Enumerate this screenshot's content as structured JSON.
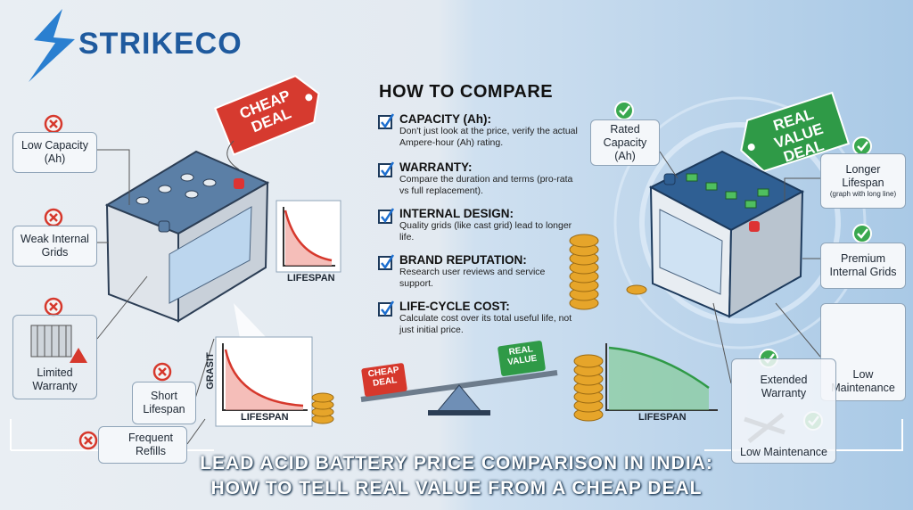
{
  "logo": "STRIKECO",
  "left": {
    "tag": "CHEAP DEAL",
    "callouts": [
      "Low Capacity (Ah)",
      "Weak Internal Grids",
      "Limited Warranty",
      "Short Lifespan",
      "Frequent Refills"
    ],
    "chart_top_label": "LIFESPAN",
    "chart_bottom_ylabel": "GRASIT",
    "chart_bottom_label": "LIFESPAN"
  },
  "compare": {
    "title": "HOW TO COMPARE",
    "items": [
      {
        "title": "CAPACITY (Ah):",
        "text": "Don't just look at the price, verify the actual Ampere-hour (Ah) rating."
      },
      {
        "title": "WARRANTY:",
        "text": "Compare the duration and terms (pro-rata vs full replacement)."
      },
      {
        "title": "INTERNAL DESIGN:",
        "text": "Quality grids (like cast grid) lead to longer life."
      },
      {
        "title": "BRAND REPUTATION:",
        "text": "Research user reviews and service support."
      },
      {
        "title": "LIFE-CYCLE COST:",
        "text": "Calculate cost over its total useful life, not just initial price."
      }
    ]
  },
  "seesaw": {
    "cheap": "CHEAP DEAL",
    "real": "REAL VALUE"
  },
  "right": {
    "tag": "REAL VALUE DEAL",
    "rated": "Rated Capacity (Ah)",
    "longer": "Longer Lifespan",
    "longer_note": "(graph with long line)",
    "premium": "Premium Internal Grids",
    "low_maint": "Low Maintenance",
    "extended": "Extended Warranty",
    "extended_sub": "Low Maintenance",
    "chart_label": "LIFESPAN"
  },
  "footer": [
    "LEAD ACID BATTERY PRICE COMPARISON IN INDIA:",
    "HOW TO TELL REAL VALUE FROM A CHEAP DEAL"
  ]
}
